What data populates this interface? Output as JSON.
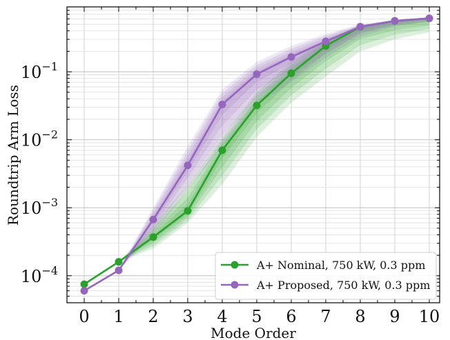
{
  "chart_data": {
    "type": "line",
    "title": "",
    "xlabel": "Mode Order",
    "ylabel": "Roundtrip Arm Loss",
    "x": [
      0,
      1,
      2,
      3,
      4,
      5,
      6,
      7,
      8,
      9,
      10
    ],
    "xlim": [
      -0.5,
      10.3
    ],
    "ylim": [
      4e-05,
      0.9
    ],
    "yscale": "log",
    "x_ticks": [
      "0",
      "1",
      "2",
      "3",
      "4",
      "5",
      "6",
      "7",
      "8",
      "9",
      "10"
    ],
    "y_ticks": [
      {
        "value": 0.0001,
        "base": "10",
        "exp": "−4"
      },
      {
        "value": 0.001,
        "base": "10",
        "exp": "−3"
      },
      {
        "value": 0.01,
        "base": "10",
        "exp": "−2"
      },
      {
        "value": 0.1,
        "base": "10",
        "exp": "−1"
      }
    ],
    "grid": true,
    "legend_position": "bottom-right",
    "series": [
      {
        "name": "A+ Nominal, 750 kW, 0.3 ppm",
        "color": "#2ca02c",
        "values": [
          7.5e-05,
          0.00016,
          0.00037,
          0.0009,
          0.007,
          0.032,
          0.095,
          0.24,
          0.46,
          0.56,
          0.61
        ],
        "band_low": [
          7.5e-05,
          0.00016,
          0.00025,
          0.0006,
          0.0022,
          0.011,
          0.035,
          0.085,
          0.2,
          0.3,
          0.38
        ],
        "band_high": [
          7.5e-05,
          0.00016,
          0.00055,
          0.0022,
          0.011,
          0.05,
          0.14,
          0.3,
          0.48,
          0.57,
          0.62
        ]
      },
      {
        "name": "A+ Proposed, 750 kW, 0.3 ppm",
        "color": "#9467bd",
        "values": [
          6e-05,
          0.00012,
          0.00067,
          0.0042,
          0.033,
          0.092,
          0.165,
          0.28,
          0.46,
          0.56,
          0.61
        ],
        "band_low": [
          6e-05,
          0.00012,
          0.0004,
          0.0018,
          0.008,
          0.032,
          0.07,
          0.16,
          0.33,
          0.46,
          0.55
        ],
        "band_high": [
          6e-05,
          0.00012,
          0.001,
          0.008,
          0.055,
          0.14,
          0.24,
          0.36,
          0.5,
          0.58,
          0.63
        ]
      }
    ]
  }
}
